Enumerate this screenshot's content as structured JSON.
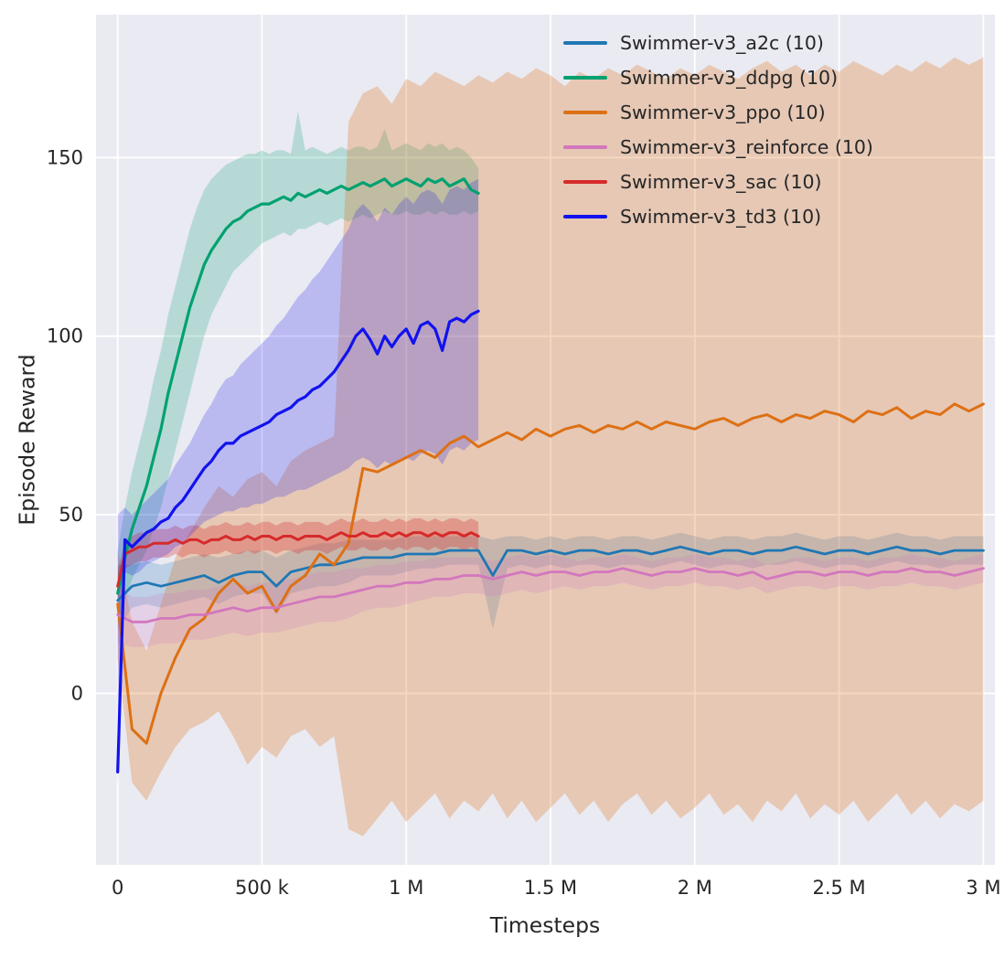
{
  "figure": {
    "background": "#ffffff",
    "plot_bg": "#eaeaf2",
    "grid_color": "#ffffff",
    "text_color": "#262626"
  },
  "chart_data": {
    "type": "line",
    "title": "",
    "xlabel": "Timesteps",
    "ylabel": "Episode Reward",
    "x_unit": "timesteps, stored in thousands (k)",
    "grid": true,
    "legend_position": "upper right, frameless",
    "xlim_k": [
      -75,
      3040
    ],
    "ylim": [
      -48,
      190
    ],
    "x_ticks": [
      {
        "v": 0,
        "label": "0"
      },
      {
        "v": 500,
        "label": "500 k"
      },
      {
        "v": 1000,
        "label": "1 M"
      },
      {
        "v": 1500,
        "label": "1.5 M"
      },
      {
        "v": 2000,
        "label": "2 M"
      },
      {
        "v": 2500,
        "label": "2.5 M"
      },
      {
        "v": 3000,
        "label": "3 M"
      }
    ],
    "y_ticks": [
      {
        "v": 0,
        "label": "0"
      },
      {
        "v": 50,
        "label": "50"
      },
      {
        "v": 100,
        "label": "100"
      },
      {
        "v": 150,
        "label": "150"
      }
    ],
    "series": [
      {
        "id": "a2c",
        "name": "Swimmer-v3_a2c (10)",
        "color": "#1f77b4",
        "band_alpha": 0.22,
        "line_width": 2.8,
        "x_start_k": 0,
        "x_end_k": 3000,
        "y": [
          26,
          30,
          31,
          30,
          31,
          32,
          33,
          31,
          33,
          34,
          34,
          30,
          34,
          35,
          36,
          36,
          37,
          38,
          38,
          38,
          39,
          39,
          39,
          40,
          40,
          40,
          33,
          40,
          40,
          39,
          40,
          39,
          40,
          40,
          39,
          40,
          40,
          39,
          40,
          41,
          40,
          39,
          40,
          40,
          39,
          40,
          40,
          41,
          40,
          39,
          40,
          40,
          39,
          40,
          41,
          40,
          40,
          39,
          40,
          40,
          40
        ],
        "band_lo": [
          18,
          24,
          25,
          24,
          25,
          26,
          27,
          25,
          27,
          28,
          28,
          22,
          28,
          29,
          30,
          30,
          31,
          33,
          33,
          33,
          34,
          35,
          35,
          36,
          36,
          36,
          18,
          35,
          36,
          35,
          36,
          35,
          36,
          36,
          35,
          36,
          36,
          35,
          36,
          37,
          36,
          35,
          36,
          36,
          35,
          36,
          36,
          37,
          36,
          35,
          36,
          36,
          35,
          36,
          37,
          36,
          36,
          35,
          36,
          36,
          36
        ],
        "band_hi": [
          36,
          36,
          37,
          36,
          37,
          38,
          39,
          38,
          39,
          40,
          40,
          38,
          40,
          41,
          42,
          42,
          43,
          43,
          43,
          43,
          44,
          44,
          44,
          44,
          44,
          44,
          43,
          44,
          44,
          43,
          44,
          43,
          44,
          44,
          43,
          44,
          44,
          43,
          44,
          45,
          44,
          43,
          44,
          44,
          43,
          44,
          44,
          45,
          44,
          43,
          44,
          44,
          43,
          44,
          45,
          44,
          44,
          43,
          44,
          44,
          44
        ]
      },
      {
        "id": "ddpg",
        "name": "Swimmer-v3_ddpg (10)",
        "color": "#00a170",
        "band_alpha": 0.22,
        "line_width": 3.2,
        "x_start_k": 0,
        "x_end_k": 1250,
        "y": [
          28,
          38,
          46,
          52,
          58,
          66,
          74,
          84,
          92,
          100,
          108,
          114,
          120,
          124,
          127,
          130,
          132,
          133,
          135,
          136,
          137,
          137,
          138,
          139,
          138,
          140,
          139,
          140,
          141,
          140,
          141,
          142,
          141,
          142,
          143,
          142,
          143,
          144,
          142,
          143,
          144,
          143,
          142,
          144,
          143,
          144,
          142,
          143,
          144,
          141,
          140
        ],
        "band_lo": [
          20,
          26,
          32,
          36,
          40,
          46,
          52,
          60,
          68,
          76,
          84,
          92,
          100,
          106,
          110,
          114,
          118,
          120,
          122,
          124,
          126,
          127,
          128,
          129,
          128,
          130,
          130,
          131,
          132,
          131,
          132,
          133,
          132,
          133,
          134,
          133,
          134,
          135,
          134,
          134,
          135,
          134,
          134,
          135,
          134,
          135,
          134,
          134,
          135,
          134,
          135
        ],
        "band_hi": [
          40,
          52,
          62,
          70,
          78,
          88,
          96,
          106,
          114,
          122,
          130,
          136,
          141,
          144,
          146,
          148,
          149,
          150,
          151,
          151,
          152,
          151,
          152,
          152,
          151,
          163,
          152,
          153,
          152,
          151,
          152,
          153,
          152,
          153,
          153,
          152,
          153,
          158,
          152,
          153,
          154,
          153,
          152,
          154,
          153,
          154,
          152,
          153,
          152,
          150,
          147
        ]
      },
      {
        "id": "ppo",
        "name": "Swimmer-v3_ppo (10)",
        "color": "#dd7014",
        "band_alpha": 0.27,
        "line_width": 3.0,
        "x_start_k": 0,
        "x_end_k": 3000,
        "y": [
          25,
          -10,
          -14,
          0,
          10,
          18,
          21,
          28,
          32,
          28,
          30,
          23,
          30,
          33,
          39,
          36,
          42,
          63,
          62,
          64,
          66,
          68,
          66,
          70,
          72,
          69,
          71,
          73,
          71,
          74,
          72,
          74,
          75,
          73,
          75,
          74,
          76,
          74,
          76,
          75,
          74,
          76,
          77,
          75,
          77,
          78,
          76,
          78,
          77,
          79,
          78,
          76,
          79,
          78,
          80,
          77,
          79,
          78,
          81,
          79,
          81
        ],
        "band_lo": [
          10,
          -25,
          -30,
          -22,
          -15,
          -10,
          -8,
          -5,
          -12,
          -20,
          -15,
          -18,
          -12,
          -10,
          -15,
          -12,
          -38,
          -40,
          -35,
          -30,
          -36,
          -32,
          -28,
          -35,
          -30,
          -33,
          -28,
          -35,
          -30,
          -36,
          -32,
          -28,
          -34,
          -30,
          -36,
          -31,
          -28,
          -34,
          -30,
          -35,
          -32,
          -28,
          -34,
          -31,
          -36,
          -30,
          -33,
          -28,
          -35,
          -31,
          -34,
          -30,
          -36,
          -32,
          -28,
          -34,
          -30,
          -35,
          -31,
          -33,
          -30
        ],
        "band_hi": [
          40,
          20,
          12,
          25,
          38,
          45,
          52,
          58,
          55,
          60,
          62,
          58,
          65,
          68,
          70,
          72,
          160,
          168,
          170,
          165,
          172,
          170,
          174,
          172,
          170,
          173,
          171,
          174,
          172,
          175,
          173,
          170,
          174,
          172,
          175,
          173,
          176,
          174,
          172,
          175,
          173,
          176,
          174,
          172,
          175,
          177,
          174,
          176,
          173,
          176,
          174,
          177,
          175,
          173,
          176,
          174,
          177,
          175,
          178,
          176,
          178
        ]
      },
      {
        "id": "reinforce",
        "name": "Swimmer-v3_reinforce (10)",
        "color": "#d277bd",
        "band_alpha": 0.22,
        "line_width": 2.8,
        "x_start_k": 0,
        "x_end_k": 3000,
        "y": [
          22,
          20,
          20,
          21,
          21,
          22,
          22,
          23,
          24,
          23,
          24,
          24,
          25,
          26,
          27,
          27,
          28,
          29,
          30,
          30,
          31,
          31,
          32,
          32,
          33,
          33,
          32,
          33,
          34,
          33,
          34,
          34,
          33,
          34,
          34,
          35,
          34,
          33,
          34,
          34,
          35,
          34,
          34,
          33,
          34,
          32,
          33,
          34,
          34,
          33,
          34,
          34,
          33,
          34,
          34,
          35,
          34,
          34,
          33,
          34,
          35
        ],
        "band_lo": [
          14,
          13,
          13,
          14,
          14,
          15,
          15,
          16,
          17,
          16,
          17,
          17,
          18,
          19,
          20,
          20,
          21,
          23,
          24,
          24,
          25,
          26,
          27,
          27,
          28,
          28,
          27,
          28,
          29,
          28,
          29,
          30,
          29,
          30,
          30,
          31,
          30,
          29,
          30,
          30,
          31,
          30,
          30,
          29,
          30,
          28,
          29,
          30,
          30,
          29,
          30,
          30,
          29,
          30,
          30,
          31,
          30,
          30,
          29,
          30,
          31
        ],
        "band_hi": [
          30,
          27,
          27,
          28,
          28,
          29,
          29,
          30,
          31,
          30,
          31,
          31,
          32,
          33,
          34,
          34,
          35,
          35,
          36,
          36,
          37,
          37,
          38,
          38,
          38,
          38,
          37,
          38,
          39,
          38,
          39,
          38,
          37,
          38,
          38,
          39,
          38,
          37,
          38,
          38,
          39,
          38,
          38,
          37,
          38,
          36,
          37,
          38,
          38,
          37,
          38,
          38,
          37,
          38,
          38,
          39,
          38,
          38,
          37,
          38,
          39
        ]
      },
      {
        "id": "sac",
        "name": "Swimmer-v3_sac (10)",
        "color": "#d62a2a",
        "band_alpha": 0.3,
        "line_width": 3.0,
        "x_start_k": 0,
        "x_end_k": 1250,
        "y": [
          30,
          39,
          40,
          41,
          41,
          42,
          42,
          42,
          43,
          42,
          43,
          43,
          42,
          43,
          43,
          44,
          43,
          43,
          44,
          43,
          44,
          44,
          43,
          44,
          44,
          43,
          44,
          44,
          44,
          43,
          44,
          45,
          44,
          44,
          45,
          44,
          44,
          45,
          44,
          45,
          44,
          45,
          45,
          44,
          45,
          44,
          45,
          45,
          44,
          45,
          44
        ],
        "band_lo": [
          26,
          35,
          36,
          37,
          37,
          38,
          38,
          38,
          39,
          38,
          39,
          39,
          38,
          39,
          39,
          40,
          39,
          39,
          40,
          39,
          40,
          40,
          39,
          40,
          40,
          39,
          40,
          40,
          40,
          39,
          40,
          41,
          40,
          40,
          41,
          40,
          40,
          41,
          40,
          41,
          40,
          41,
          41,
          40,
          41,
          40,
          41,
          41,
          40,
          41,
          40
        ],
        "band_hi": [
          34,
          43,
          44,
          45,
          45,
          46,
          46,
          46,
          47,
          46,
          47,
          47,
          46,
          47,
          47,
          48,
          47,
          47,
          48,
          47,
          48,
          48,
          47,
          48,
          48,
          47,
          48,
          48,
          48,
          47,
          48,
          49,
          48,
          48,
          49,
          48,
          48,
          49,
          48,
          49,
          48,
          49,
          49,
          48,
          49,
          48,
          49,
          49,
          48,
          49,
          48
        ]
      },
      {
        "id": "td3",
        "name": "Swimmer-v3_td3 (10)",
        "color": "#1212ee",
        "band_alpha": 0.22,
        "line_width": 3.2,
        "x_start_k": 0,
        "x_end_k": 1250,
        "y": [
          -22,
          43,
          41,
          43,
          45,
          46,
          48,
          49,
          52,
          54,
          57,
          60,
          63,
          65,
          68,
          70,
          70,
          72,
          73,
          74,
          75,
          76,
          78,
          79,
          80,
          82,
          83,
          85,
          86,
          88,
          90,
          93,
          96,
          100,
          102,
          99,
          95,
          100,
          97,
          100,
          102,
          98,
          103,
          104,
          102,
          96,
          104,
          105,
          104,
          106,
          107
        ],
        "band_lo": [
          -26,
          34,
          33,
          34,
          36,
          37,
          38,
          39,
          41,
          42,
          44,
          46,
          48,
          49,
          50,
          51,
          51,
          52,
          52,
          53,
          53,
          54,
          55,
          55,
          56,
          57,
          57,
          58,
          59,
          60,
          61,
          62,
          63,
          65,
          66,
          65,
          63,
          65,
          64,
          65,
          66,
          65,
          67,
          68,
          67,
          64,
          68,
          69,
          68,
          70,
          71
        ],
        "band_hi": [
          50,
          52,
          50,
          52,
          54,
          56,
          58,
          60,
          64,
          67,
          70,
          74,
          78,
          81,
          85,
          88,
          89,
          92,
          94,
          96,
          98,
          100,
          103,
          105,
          108,
          111,
          113,
          116,
          118,
          121,
          124,
          127,
          130,
          135,
          137,
          135,
          132,
          136,
          134,
          137,
          139,
          137,
          140,
          141,
          140,
          137,
          141,
          142,
          141,
          143,
          144
        ]
      }
    ]
  }
}
